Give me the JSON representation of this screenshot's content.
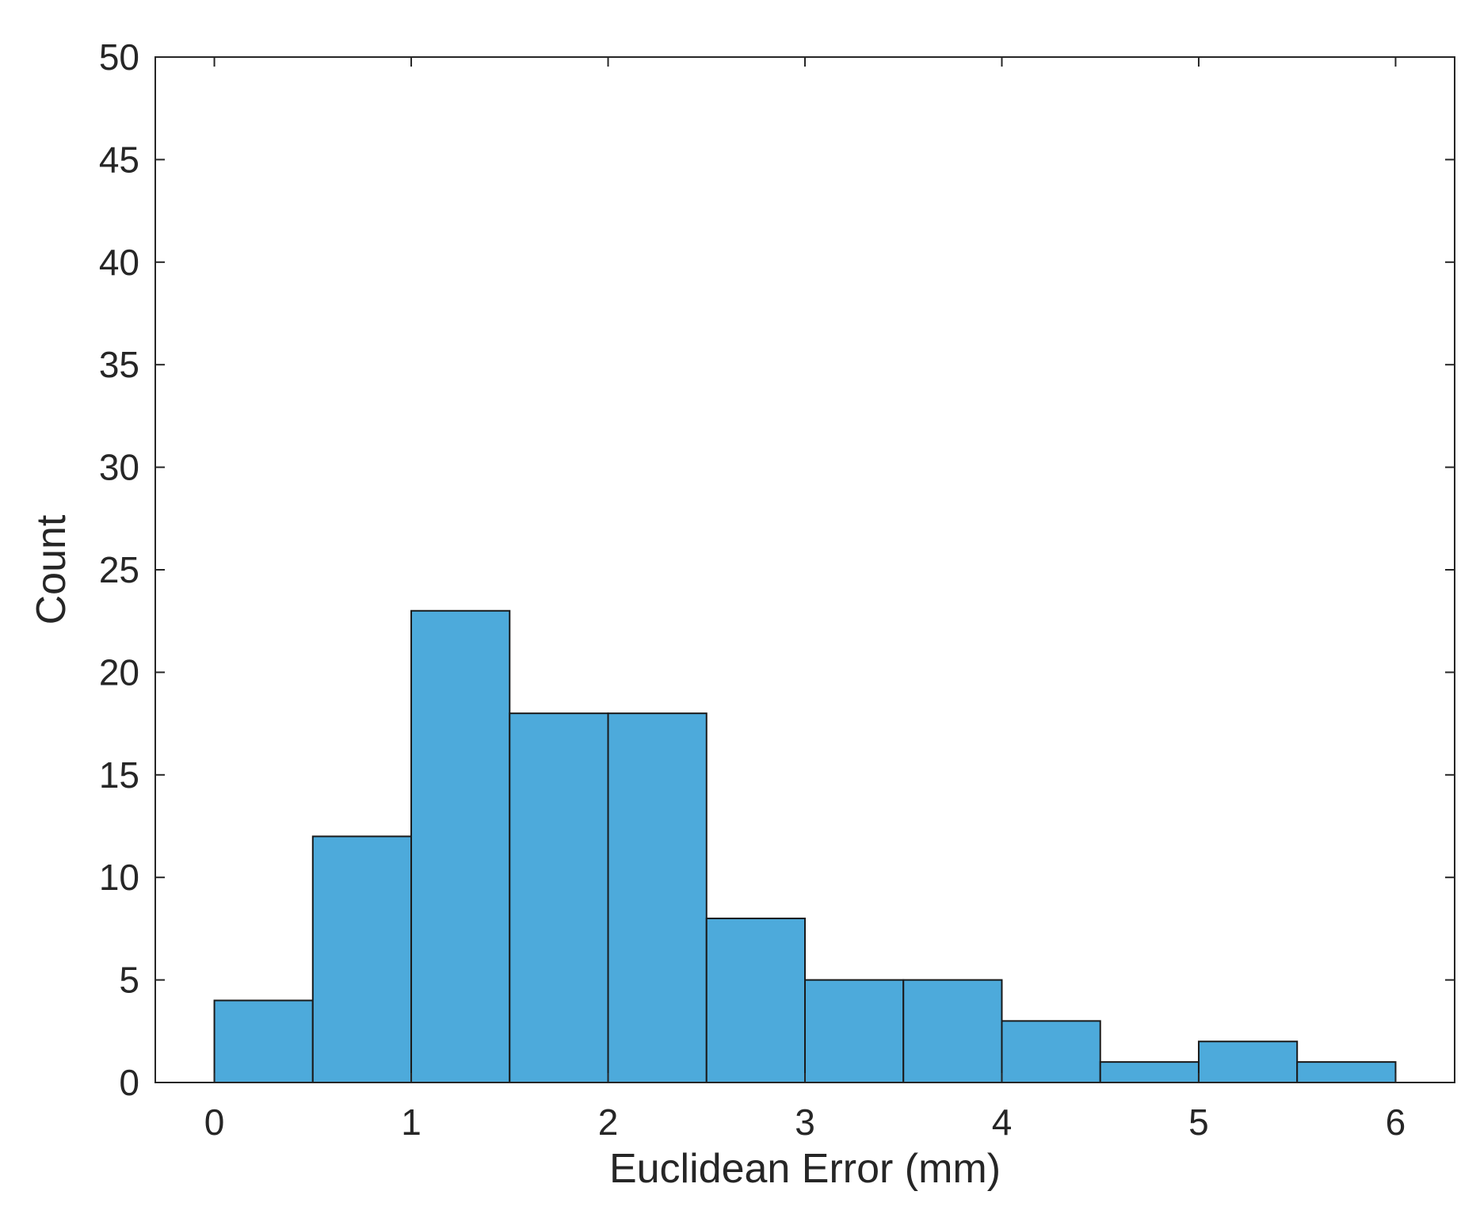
{
  "chart_data": {
    "type": "bar",
    "title": "",
    "xlabel": "Euclidean Error (mm)",
    "ylabel": "Count",
    "bin_edges": [
      0,
      0.5,
      1,
      1.5,
      2,
      2.5,
      3,
      3.5,
      4,
      4.5,
      5,
      5.5,
      6
    ],
    "values": [
      4,
      12,
      23,
      18,
      18,
      8,
      5,
      5,
      3,
      1,
      2,
      1
    ],
    "xlim": [
      -0.3,
      6.3
    ],
    "ylim": [
      0,
      50
    ],
    "xticks": [
      0,
      1,
      2,
      3,
      4,
      5,
      6
    ],
    "yticks": [
      0,
      5,
      10,
      15,
      20,
      25,
      30,
      35,
      40,
      45,
      50
    ],
    "grid": false,
    "legend": "none",
    "colors": {
      "bar_fill": "#4DAADB",
      "bar_edge": "#1a1a1a",
      "axis": "#262626"
    }
  }
}
